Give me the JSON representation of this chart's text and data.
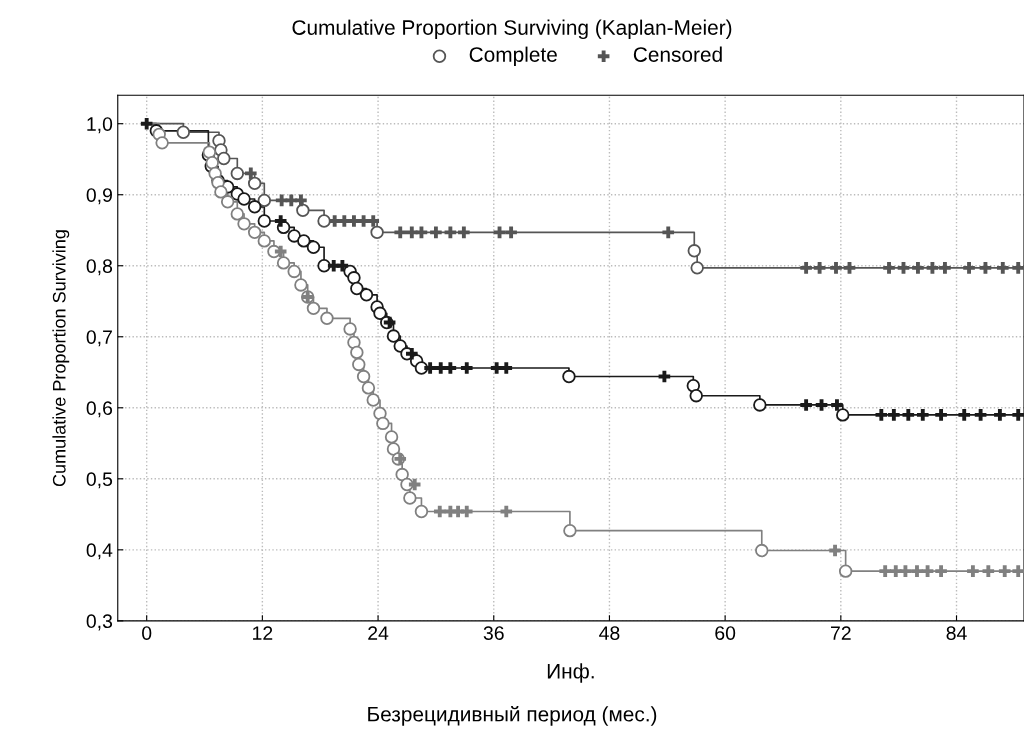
{
  "chart_data": {
    "type": "step",
    "title": "Cumulative Proportion Surviving (Kaplan-Meier)",
    "xlabel": "Инф.",
    "ylabel": "Cumulative Proportion Surviving",
    "annotations": [
      "Безрецидивный период (мес.)"
    ],
    "xlim": [
      -3,
      91
    ],
    "xticks": [
      0,
      12,
      24,
      36,
      48,
      60,
      72,
      84
    ],
    "ylim": [
      0.3,
      1.04
    ],
    "yticks": [
      {
        "value": 0.3,
        "label": "0,3"
      },
      {
        "value": 0.4,
        "label": "0,4"
      },
      {
        "value": 0.5,
        "label": "0,5"
      },
      {
        "value": 0.6,
        "label": "0,6"
      },
      {
        "value": 0.7,
        "label": "0,7"
      },
      {
        "value": 0.8,
        "label": "0,8"
      },
      {
        "value": 0.9,
        "label": "0,9"
      },
      {
        "value": 1.0,
        "label": "1,0"
      }
    ],
    "grid": true,
    "legend": "top",
    "line_style": "solid",
    "series": [
      {
        "color": "#555555",
        "marker": "none",
        "x": [
          0,
          3.8,
          7.5,
          7.7,
          8.0,
          9.4,
          11.2,
          12.2,
          16.2,
          18.4,
          23.9,
          56.8,
          57.1,
          90.6
        ],
        "values": [
          1.0,
          0.988,
          0.976,
          0.963,
          0.951,
          0.93,
          0.916,
          0.892,
          0.878,
          0.863,
          0.847,
          0.821,
          0.797,
          0.797
        ]
      },
      {
        "color": "#1a1a1a",
        "marker": "none",
        "x": [
          0,
          1,
          6.4,
          6.7,
          7.4,
          8.4,
          9.4,
          10.1,
          11.2,
          12.2,
          14.2,
          15.3,
          16.3,
          17.3,
          18.4,
          21.1,
          21.5,
          21.8,
          22.8,
          23.9,
          24.2,
          24.9,
          25.6,
          26.3,
          27,
          28,
          28.5,
          43.8,
          56.7,
          57,
          63.6,
          72.2,
          90.6
        ],
        "values": [
          1.0,
          0.99,
          0.956,
          0.94,
          0.92,
          0.911,
          0.901,
          0.894,
          0.883,
          0.863,
          0.854,
          0.842,
          0.835,
          0.826,
          0.8,
          0.792,
          0.783,
          0.768,
          0.759,
          0.742,
          0.733,
          0.72,
          0.701,
          0.687,
          0.676,
          0.666,
          0.656,
          0.644,
          0.631,
          0.617,
          0.604,
          0.59,
          0.59
        ]
      },
      {
        "color": "#808080",
        "marker": "none",
        "x": [
          0,
          1.3,
          1.6,
          6.5,
          6.8,
          7.1,
          7.4,
          7.7,
          8.4,
          9.4,
          10.1,
          11.2,
          12.2,
          13.2,
          14.2,
          15.3,
          16,
          16.7,
          17.3,
          18.7,
          21.1,
          21.5,
          21.8,
          22,
          22.5,
          23,
          23.5,
          24.2,
          24.5,
          25.4,
          25.6,
          26.1,
          26.5,
          27,
          27.3,
          28.5,
          43.9,
          63.8,
          72.5,
          90.6
        ],
        "values": [
          1.0,
          0.985,
          0.973,
          0.96,
          0.945,
          0.93,
          0.917,
          0.904,
          0.89,
          0.873,
          0.859,
          0.847,
          0.835,
          0.82,
          0.804,
          0.792,
          0.773,
          0.756,
          0.74,
          0.726,
          0.711,
          0.692,
          0.678,
          0.661,
          0.644,
          0.628,
          0.611,
          0.592,
          0.578,
          0.559,
          0.542,
          0.528,
          0.506,
          0.492,
          0.473,
          0.454,
          0.427,
          0.399,
          0.37,
          0.37
        ]
      },
      {
        "type": "scatter",
        "name": "Complete",
        "marker": "circle",
        "x": [
          3.8,
          7.5,
          7.7,
          8.0,
          9.4,
          11.2,
          12.2,
          16.2,
          18.4,
          23.9,
          56.8,
          57.1,
          1,
          6.4,
          6.7,
          7.4,
          8.4,
          9.4,
          10.1,
          11.2,
          12.2,
          14.2,
          15.3,
          16.3,
          17.3,
          18.4,
          21.1,
          21.5,
          21.8,
          22.8,
          23.9,
          24.2,
          24.9,
          25.6,
          26.3,
          27,
          28,
          28.5,
          43.8,
          56.7,
          57,
          63.6,
          72.2,
          1.3,
          1.6,
          6.5,
          6.8,
          7.1,
          7.4,
          7.7,
          8.4,
          9.4,
          10.1,
          11.2,
          12.2,
          13.2,
          14.2,
          15.3,
          16,
          16.7,
          17.3,
          18.7,
          21.1,
          21.5,
          21.8,
          22,
          22.5,
          23,
          23.5,
          24.2,
          24.5,
          25.4,
          25.6,
          26.1,
          26.5,
          27,
          27.3,
          28.5,
          43.9,
          63.8,
          72.5
        ],
        "values": [
          0.988,
          0.976,
          0.963,
          0.951,
          0.93,
          0.916,
          0.892,
          0.878,
          0.863,
          0.847,
          0.821,
          0.797,
          0.99,
          0.956,
          0.94,
          0.92,
          0.911,
          0.901,
          0.894,
          0.883,
          0.863,
          0.854,
          0.842,
          0.835,
          0.826,
          0.8,
          0.792,
          0.783,
          0.768,
          0.759,
          0.742,
          0.733,
          0.72,
          0.701,
          0.687,
          0.676,
          0.666,
          0.656,
          0.644,
          0.631,
          0.617,
          0.604,
          0.59,
          0.985,
          0.973,
          0.96,
          0.945,
          0.93,
          0.917,
          0.904,
          0.89,
          0.873,
          0.859,
          0.847,
          0.835,
          0.82,
          0.804,
          0.792,
          0.773,
          0.756,
          0.74,
          0.726,
          0.711,
          0.692,
          0.678,
          0.661,
          0.644,
          0.628,
          0.611,
          0.592,
          0.578,
          0.559,
          0.542,
          0.528,
          0.506,
          0.492,
          0.473,
          0.454,
          0.427,
          0.399,
          0.37
        ],
        "colors": [
          "#555555",
          "#555555",
          "#555555",
          "#555555",
          "#555555",
          "#555555",
          "#555555",
          "#555555",
          "#555555",
          "#555555",
          "#555555",
          "#555555",
          "#1a1a1a",
          "#1a1a1a",
          "#1a1a1a",
          "#1a1a1a",
          "#1a1a1a",
          "#1a1a1a",
          "#1a1a1a",
          "#1a1a1a",
          "#1a1a1a",
          "#1a1a1a",
          "#1a1a1a",
          "#1a1a1a",
          "#1a1a1a",
          "#1a1a1a",
          "#1a1a1a",
          "#1a1a1a",
          "#1a1a1a",
          "#1a1a1a",
          "#1a1a1a",
          "#1a1a1a",
          "#1a1a1a",
          "#1a1a1a",
          "#1a1a1a",
          "#1a1a1a",
          "#1a1a1a",
          "#1a1a1a",
          "#1a1a1a",
          "#1a1a1a",
          "#1a1a1a",
          "#1a1a1a",
          "#1a1a1a",
          "#808080",
          "#808080",
          "#808080",
          "#808080",
          "#808080",
          "#808080",
          "#808080",
          "#808080",
          "#808080",
          "#808080",
          "#808080",
          "#808080",
          "#808080",
          "#808080",
          "#808080",
          "#808080",
          "#808080",
          "#808080",
          "#808080",
          "#808080",
          "#808080",
          "#808080",
          "#808080",
          "#808080",
          "#808080",
          "#808080",
          "#808080",
          "#808080",
          "#808080",
          "#808080",
          "#808080",
          "#808080",
          "#808080",
          "#808080",
          "#808080",
          "#808080",
          "#808080",
          "#808080"
        ]
      },
      {
        "type": "scatter",
        "name": "Censored",
        "marker": "cross",
        "x": [
          10.8,
          14,
          15,
          16,
          19.5,
          20.5,
          21.5,
          22.5,
          23.5,
          26.3,
          27.5,
          28.5,
          30,
          31.5,
          32.9,
          36.6,
          37.8,
          54.1,
          68.4,
          69.8,
          71.5,
          72.9,
          77,
          78.5,
          80,
          81.5,
          82.8,
          85.3,
          87,
          88.8,
          90.4,
          0,
          13.9,
          19.4,
          20.3,
          25.2,
          27.5,
          29.4,
          30.5,
          31.5,
          33.2,
          36.3,
          37.3,
          53.7,
          68.4,
          70,
          71.6,
          76.2,
          77.5,
          79,
          80.5,
          82.4,
          84.8,
          86.5,
          88.5,
          90.4,
          13.9,
          16.7,
          26.3,
          27.8,
          30.4,
          31.5,
          32.3,
          33.2,
          37.3,
          71.4,
          76.6,
          77.7,
          78.7,
          79.9,
          81,
          82.4,
          85.7,
          87.3,
          89,
          90.4
        ],
        "values": [
          0.93,
          0.892,
          0.892,
          0.892,
          0.863,
          0.863,
          0.863,
          0.863,
          0.863,
          0.847,
          0.847,
          0.847,
          0.847,
          0.847,
          0.847,
          0.847,
          0.847,
          0.847,
          0.797,
          0.797,
          0.797,
          0.797,
          0.797,
          0.797,
          0.797,
          0.797,
          0.797,
          0.797,
          0.797,
          0.797,
          0.797,
          1.0,
          0.863,
          0.8,
          0.8,
          0.72,
          0.676,
          0.656,
          0.656,
          0.656,
          0.656,
          0.656,
          0.656,
          0.644,
          0.604,
          0.604,
          0.604,
          0.59,
          0.59,
          0.59,
          0.59,
          0.59,
          0.59,
          0.59,
          0.59,
          0.59,
          0.82,
          0.756,
          0.528,
          0.492,
          0.454,
          0.454,
          0.454,
          0.454,
          0.454,
          0.399,
          0.37,
          0.37,
          0.37,
          0.37,
          0.37,
          0.37,
          0.37,
          0.37,
          0.37,
          0.37
        ],
        "colors": [
          "#555555",
          "#555555",
          "#555555",
          "#555555",
          "#555555",
          "#555555",
          "#555555",
          "#555555",
          "#555555",
          "#555555",
          "#555555",
          "#555555",
          "#555555",
          "#555555",
          "#555555",
          "#555555",
          "#555555",
          "#555555",
          "#555555",
          "#555555",
          "#555555",
          "#555555",
          "#555555",
          "#555555",
          "#555555",
          "#555555",
          "#555555",
          "#555555",
          "#555555",
          "#555555",
          "#555555",
          "#1a1a1a",
          "#1a1a1a",
          "#1a1a1a",
          "#1a1a1a",
          "#1a1a1a",
          "#1a1a1a",
          "#1a1a1a",
          "#1a1a1a",
          "#1a1a1a",
          "#1a1a1a",
          "#1a1a1a",
          "#1a1a1a",
          "#1a1a1a",
          "#1a1a1a",
          "#1a1a1a",
          "#1a1a1a",
          "#1a1a1a",
          "#1a1a1a",
          "#1a1a1a",
          "#1a1a1a",
          "#1a1a1a",
          "#1a1a1a",
          "#1a1a1a",
          "#1a1a1a",
          "#1a1a1a",
          "#808080",
          "#808080",
          "#808080",
          "#808080",
          "#808080",
          "#808080",
          "#808080",
          "#808080",
          "#808080",
          "#808080",
          "#808080",
          "#808080",
          "#808080",
          "#808080",
          "#808080",
          "#808080",
          "#808080",
          "#808080",
          "#808080",
          "#808080"
        ]
      }
    ]
  }
}
